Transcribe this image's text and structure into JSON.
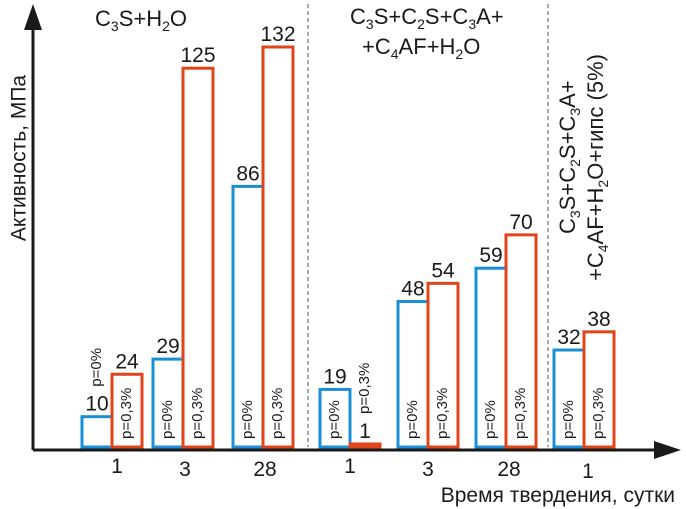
{
  "chart_data": {
    "type": "bar",
    "ylabel": "Активность, МПа",
    "xlabel": "Время твердения, сутки",
    "grid": false,
    "legend": "none",
    "colors": {
      "p0": "#1b8fd6",
      "p03": "#e0441b",
      "axis": "#1a1a1a",
      "divider": "#555555"
    },
    "series": [
      {
        "name": "p=0%"
      },
      {
        "name": "p=0,3%"
      }
    ],
    "groups": [
      {
        "composition": "C₃S+H₂O",
        "ticks": [
          {
            "label": "1",
            "values": [
              10,
              24
            ]
          },
          {
            "label": "3",
            "values": [
              29,
              125
            ]
          },
          {
            "label": "28",
            "values": [
              86,
              132
            ]
          }
        ]
      },
      {
        "composition": "C₃S+C₂S+C₃A+ +C₄AF+H₂O",
        "ticks": [
          {
            "label": "1",
            "values": [
              19,
              1
            ]
          },
          {
            "label": "3",
            "values": [
              48,
              54
            ]
          },
          {
            "label": "28",
            "values": [
              59,
              70
            ]
          }
        ]
      },
      {
        "composition": "C₃S+C₂S+C₃A+ +C₄AF+H₂O+гипс (5%)",
        "ticks": [
          {
            "label": "1",
            "values": [
              32,
              38
            ]
          }
        ]
      }
    ]
  }
}
